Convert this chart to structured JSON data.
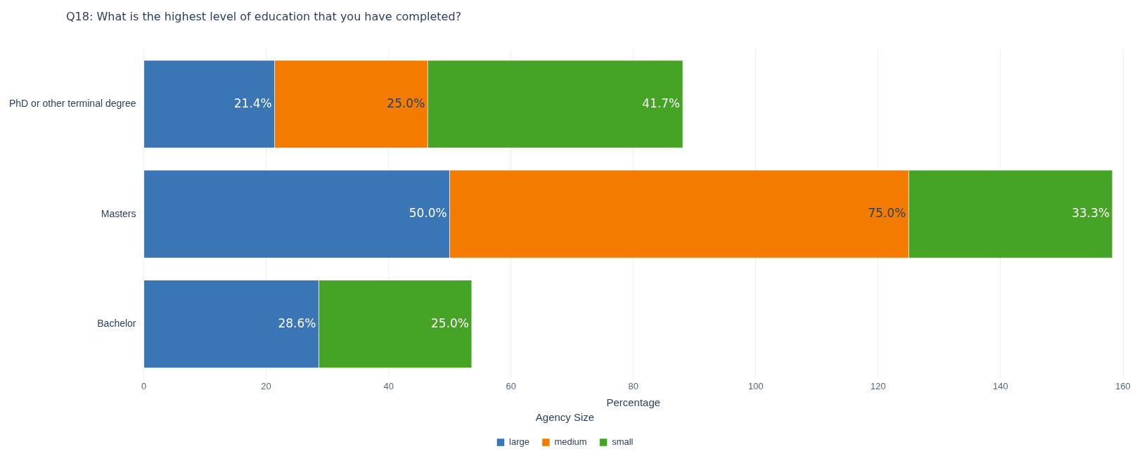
{
  "chart_data": {
    "type": "bar",
    "orientation": "horizontal",
    "stacked": true,
    "title": "Q18: What is the highest level of education that you have completed?",
    "xlabel": "Percentage",
    "legend_title": "Agency Size",
    "legend": "bottom",
    "grid": "x",
    "categories": [
      "PhD or other terminal degree",
      "Masters",
      "Bachelor"
    ],
    "xlim": [
      0,
      160
    ],
    "xticks": [
      0,
      20,
      40,
      60,
      80,
      100,
      120,
      140,
      160
    ],
    "series": [
      {
        "name": "large",
        "color": "#3a76b5",
        "values": [
          21.4,
          50.0,
          28.6
        ],
        "value_labels": [
          "21.4%",
          "50.0%",
          "28.6%"
        ]
      },
      {
        "name": "medium",
        "color": "#f27b00",
        "values": [
          25.0,
          75.0,
          null
        ],
        "value_labels": [
          "25.0%",
          "75.0%",
          null
        ]
      },
      {
        "name": "small",
        "color": "#45a325",
        "values": [
          41.7,
          33.3,
          25.0
        ],
        "value_labels": [
          "41.7%",
          "33.3%",
          "25.0%"
        ]
      }
    ]
  }
}
